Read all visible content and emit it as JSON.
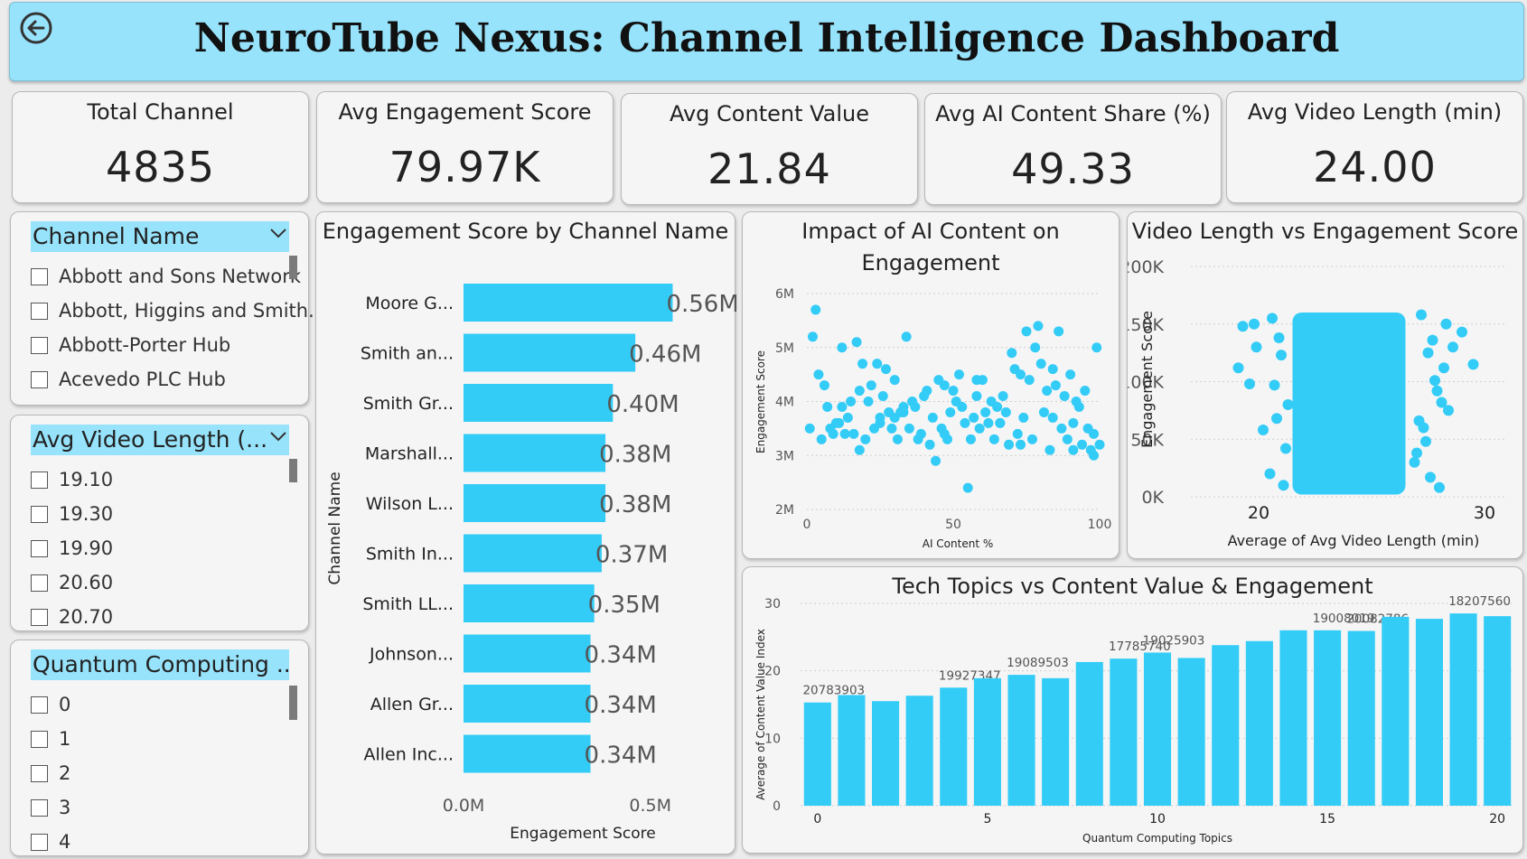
{
  "header": {
    "title": "NeuroTube Nexus: Channel Intelligence Dashboard"
  },
  "kpis": [
    {
      "label": "Total Channel",
      "value": "4835"
    },
    {
      "label": "Avg Engagement Score",
      "value": "79.97K"
    },
    {
      "label": "Avg Content Value",
      "value": "21.84"
    },
    {
      "label": "Avg AI Content Share (%)",
      "value": "49.33"
    },
    {
      "label": "Avg Video Length (min)",
      "value": "24.00"
    }
  ],
  "slicers": [
    {
      "title": "Channel Name",
      "items": [
        "Abbott and Sons Network",
        "Abbott, Higgins and Smith...",
        "Abbott-Porter Hub",
        "Acevedo PLC Hub"
      ]
    },
    {
      "title": "Avg Video Length (...",
      "items": [
        "19.10",
        "19.30",
        "19.90",
        "20.60",
        "20.70"
      ]
    },
    {
      "title": "Quantum Computing ...",
      "items": [
        "0",
        "1",
        "2",
        "3",
        "4"
      ]
    }
  ],
  "colors": {
    "bar": "#33ccf6",
    "header_bg": "#97e3fb"
  },
  "chart_data": [
    {
      "type": "bar",
      "orientation": "horizontal",
      "title": "Engagement Score by Channel Name",
      "xlabel": "Engagement Score",
      "ylabel": "Channel Name",
      "categories": [
        "Moore G...",
        "Smith an...",
        "Smith Gr...",
        "Marshall...",
        "Wilson L...",
        "Smith In...",
        "Smith LL...",
        "Johnson...",
        "Allen Gr...",
        "Allen Inc..."
      ],
      "values": [
        0.56,
        0.46,
        0.4,
        0.38,
        0.38,
        0.37,
        0.35,
        0.34,
        0.34,
        0.34
      ],
      "value_labels": [
        "0.56M",
        "0.46M",
        "0.40M",
        "0.38M",
        "0.38M",
        "0.37M",
        "0.35M",
        "0.34M",
        "0.34M",
        "0.34M"
      ],
      "xlim": [
        0,
        0.6
      ],
      "xticks": [
        0,
        0.5
      ],
      "xtick_labels": [
        "0.0M",
        "0.5M"
      ]
    },
    {
      "type": "scatter",
      "title": "Impact of AI Content on Engagement",
      "xlabel": "AI Content %",
      "ylabel": "Engagement Score",
      "xlim": [
        0,
        100
      ],
      "ylim": [
        2,
        6
      ],
      "xticks": [
        0,
        50,
        100
      ],
      "xtick_labels": [
        "0",
        "50",
        "100"
      ],
      "yticks": [
        2,
        3,
        4,
        5,
        6
      ],
      "ytick_labels": [
        "2M",
        "3M",
        "4M",
        "5M",
        "6M"
      ],
      "x": [
        1,
        2,
        3,
        5,
        6,
        7,
        8,
        9,
        10,
        12,
        12,
        13,
        14,
        15,
        16,
        17,
        18,
        19,
        20,
        21,
        22,
        23,
        24,
        25,
        26,
        27,
        28,
        29,
        30,
        30,
        31,
        32,
        33,
        34,
        35,
        36,
        37,
        38,
        39,
        40,
        41,
        42,
        43,
        44,
        45,
        46,
        47,
        48,
        49,
        50,
        51,
        52,
        53,
        54,
        55,
        56,
        57,
        58,
        59,
        60,
        61,
        62,
        63,
        64,
        65,
        66,
        67,
        68,
        69,
        70,
        71,
        72,
        73,
        74,
        75,
        76,
        77,
        78,
        79,
        80,
        81,
        82,
        83,
        84,
        85,
        86,
        87,
        88,
        89,
        90,
        91,
        92,
        93,
        94,
        95,
        96,
        97,
        98,
        99,
        100,
        4,
        11,
        18,
        25,
        33,
        47,
        58,
        66,
        73,
        84,
        91,
        98
      ],
      "y": [
        3.5,
        5.2,
        5.7,
        3.3,
        4.3,
        3.9,
        3.5,
        3.4,
        3.6,
        5.0,
        3.9,
        3.4,
        3.7,
        4.0,
        3.4,
        5.1,
        3.1,
        4.7,
        3.3,
        4.0,
        4.3,
        3.5,
        4.7,
        3.7,
        4.1,
        4.6,
        3.8,
        3.5,
        4.4,
        3.7,
        3.3,
        3.8,
        3.9,
        5.2,
        3.5,
        4.0,
        3.9,
        3.3,
        3.4,
        4.1,
        4.2,
        3.2,
        3.7,
        2.9,
        4.4,
        3.5,
        4.3,
        3.3,
        3.8,
        4.2,
        4.0,
        4.5,
        3.9,
        3.6,
        2.4,
        3.3,
        3.7,
        4.1,
        3.5,
        4.4,
        3.8,
        3.6,
        4.0,
        3.3,
        3.9,
        3.6,
        4.1,
        3.8,
        3.2,
        4.9,
        4.6,
        3.4,
        4.5,
        3.7,
        5.3,
        4.4,
        3.3,
        5.0,
        5.4,
        4.7,
        3.8,
        4.2,
        3.1,
        3.7,
        4.3,
        5.3,
        3.5,
        4.1,
        3.3,
        4.5,
        3.6,
        4.0,
        3.9,
        3.2,
        4.2,
        3.5,
        3.1,
        3.4,
        5.0,
        3.2,
        4.5,
        3.6,
        4.2,
        3.6,
        3.8,
        3.4,
        4.4,
        3.6,
        3.2,
        4.6,
        3.1,
        3.0
      ]
    },
    {
      "type": "scatter",
      "title": "Video Length vs Engagement Score",
      "xlabel": "Average of Avg Video Length (min)",
      "ylabel": "Engagement Score",
      "xlim": [
        17,
        31
      ],
      "ylim": [
        0,
        200000
      ],
      "xticks": [
        20,
        30
      ],
      "xtick_labels": [
        "20",
        "30"
      ],
      "yticks": [
        0,
        50000,
        100000,
        150000,
        200000
      ],
      "ytick_labels": [
        "0K",
        "50K",
        "100K",
        "150K",
        "200K"
      ],
      "dense_region": {
        "x": [
          21.5,
          26.5
        ],
        "y": [
          2000,
          160000
        ]
      },
      "x": [
        19.1,
        19.3,
        19.9,
        20.6,
        20.7,
        21.0,
        20.2,
        20.9,
        21.3,
        19.6,
        20.5,
        21.2,
        27.2,
        27.5,
        27.8,
        28.1,
        28.3,
        28.6,
        27.0,
        27.3,
        27.9,
        28.4,
        29.5,
        29.0,
        27.6,
        28.0,
        27.4,
        26.9,
        27.1,
        21.1,
        20.8,
        19.8,
        27.7,
        28.2
      ],
      "y": [
        112000,
        148000,
        130000,
        155000,
        97000,
        123000,
        58000,
        138000,
        80000,
        98000,
        20000,
        42000,
        158000,
        125000,
        101000,
        82000,
        150000,
        130000,
        38000,
        60000,
        92000,
        75000,
        115000,
        143000,
        17000,
        8000,
        48000,
        30000,
        66000,
        10000,
        68000,
        150000,
        136000,
        112000
      ]
    },
    {
      "type": "bar",
      "title": "Tech Topics vs Content Value & Engagement",
      "xlabel": "Quantum Computing Topics",
      "ylabel": "Average of Content Value Index",
      "categories": [
        "0",
        "1",
        "2",
        "3",
        "4",
        "5",
        "6",
        "7",
        "8",
        "9",
        "10",
        "11",
        "12",
        "13",
        "14",
        "15",
        "16",
        "17",
        "18",
        "19",
        "20"
      ],
      "values": [
        15.3,
        16.4,
        15.5,
        16.3,
        17.5,
        18.9,
        19.4,
        18.9,
        21.3,
        21.8,
        22.7,
        21.9,
        23.8,
        24.4,
        26.0,
        26.0,
        25.9,
        28.0,
        27.7,
        28.5,
        28.1
      ],
      "data_labels": [
        "20783903",
        "",
        "",
        "",
        "19927347",
        "",
        "19089503",
        "",
        "",
        "17785740",
        "19025903",
        "",
        "",
        "",
        "",
        "19008019",
        "20082786",
        "",
        "",
        "18207560",
        ""
      ],
      "ylim": [
        0,
        32
      ],
      "yticks": [
        0,
        10,
        20,
        30
      ],
      "xticks": [
        0,
        5,
        10,
        15,
        20
      ]
    }
  ]
}
